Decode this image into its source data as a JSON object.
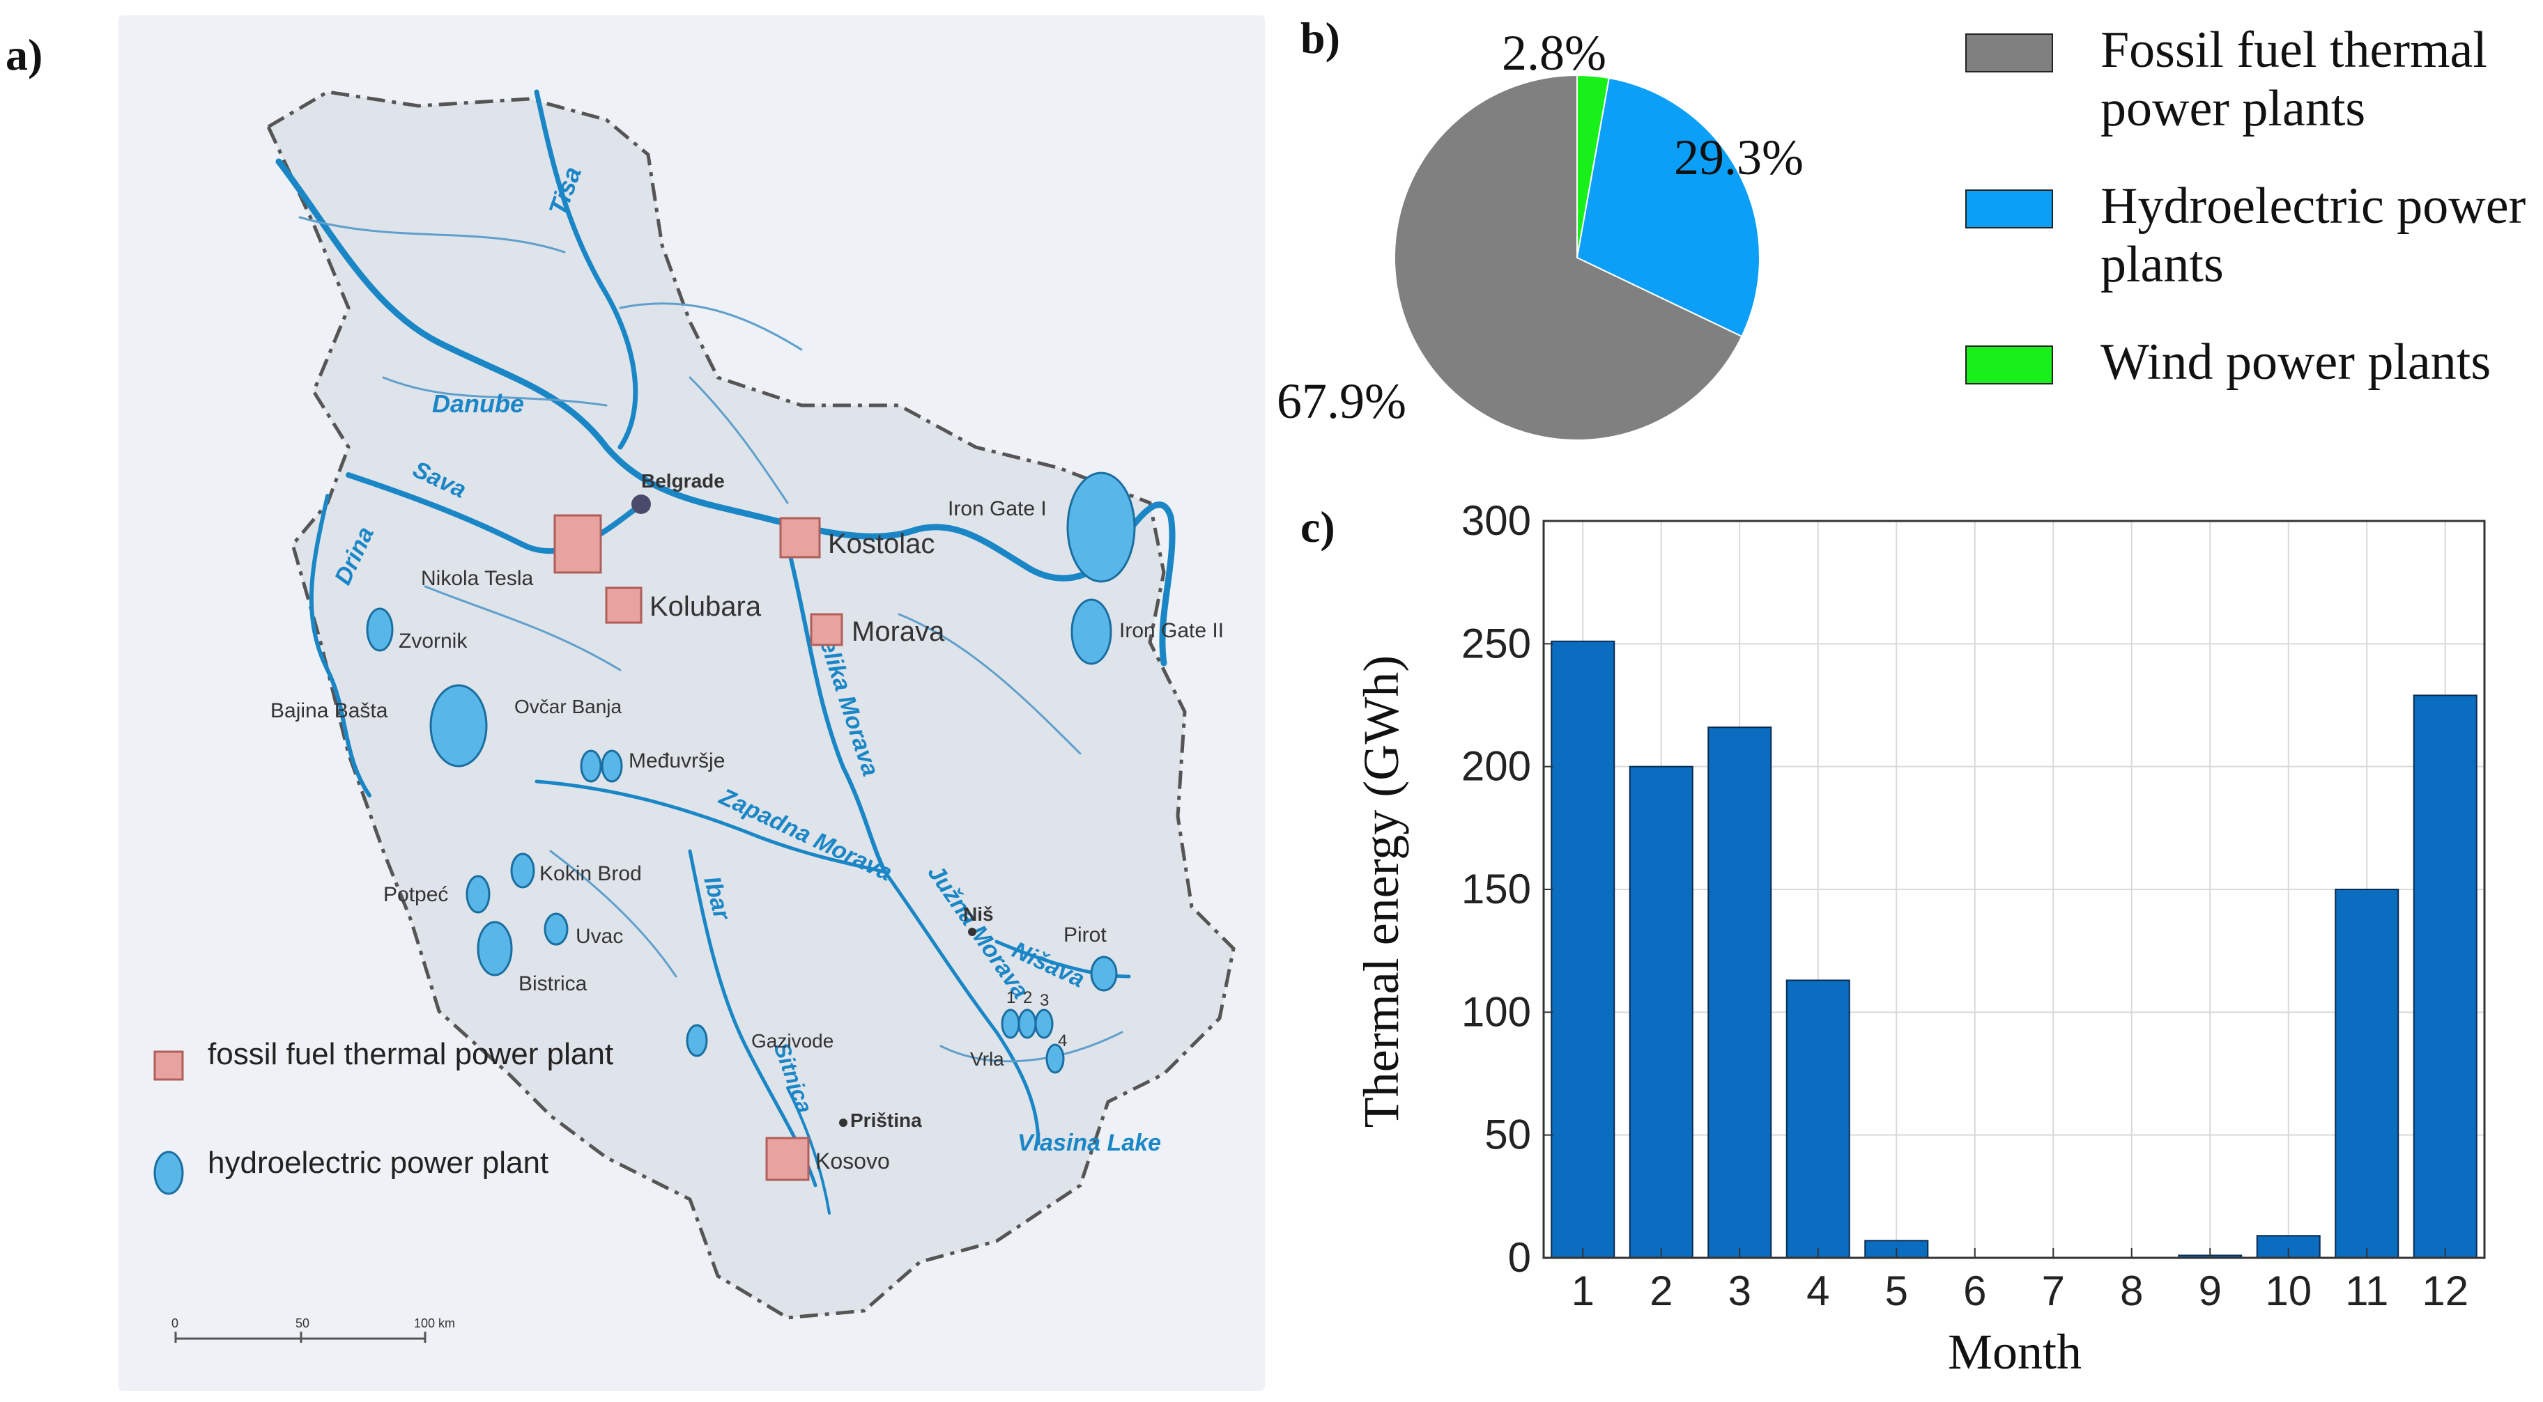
{
  "panels": {
    "a": "a)",
    "b": "b)",
    "c": "c)"
  },
  "map": {
    "cities": {
      "belgrade": "Belgrade",
      "nis": "Niš",
      "pristina": "Priština"
    },
    "thermal_plants": [
      "Nikola Tesla",
      "Kolubara",
      "Kostolac",
      "Morava",
      "Kosovo"
    ],
    "hydro_plants": [
      "Iron Gate I",
      "Iron Gate II",
      "Zvornik",
      "Bajina Bašta",
      "Ovčar Banja",
      "Međuvršje",
      "Kokin Brod",
      "Potpeć",
      "Uvac",
      "Bistrica",
      "Gazivode",
      "Vrla",
      "Pirot"
    ],
    "vrla_numbers": [
      "1",
      "2",
      "3",
      "4"
    ],
    "rivers": [
      "Tisa",
      "Danube",
      "Sava",
      "Drina",
      "Velika Morava",
      "Zapadna Morava",
      "Južna Morava",
      "Ibar",
      "Nišava",
      "Sitnica"
    ],
    "lake": "Vlasina Lake",
    "legend": {
      "thermal": "fossil fuel thermal power plant",
      "hydro": "hydroelectric power plant"
    },
    "scale_labels": [
      "0",
      "50",
      "100 km"
    ],
    "colors": {
      "river": "#1a86c6",
      "thermal": "#e7a3a0",
      "hydro": "#58b7e8"
    }
  },
  "chart_data": [
    {
      "type": "pie",
      "slices": [
        {
          "name": "Fossil fuel thermal power plants",
          "value": 67.9,
          "label": "67.9%",
          "color": "#808080"
        },
        {
          "name": "Hydroelectric power plants",
          "value": 29.3,
          "label": "29.3%",
          "color": "#0b9ff7"
        },
        {
          "name": "Wind power plants",
          "value": 2.8,
          "label": "2.8%",
          "color": "#19f019"
        }
      ]
    },
    {
      "type": "bar",
      "categories": [
        "1",
        "2",
        "3",
        "4",
        "5",
        "6",
        "7",
        "8",
        "9",
        "10",
        "11",
        "12"
      ],
      "values": [
        251,
        200,
        216,
        113,
        7,
        0,
        0,
        0,
        1,
        9,
        150,
        229
      ],
      "xlabel": "Month",
      "ylabel": "Thermal energy (GWh)",
      "ylim": [
        0,
        300
      ],
      "yticks": [
        0,
        50,
        100,
        150,
        200,
        250,
        300
      ],
      "grid": true,
      "color": "#0a6dbf"
    }
  ]
}
